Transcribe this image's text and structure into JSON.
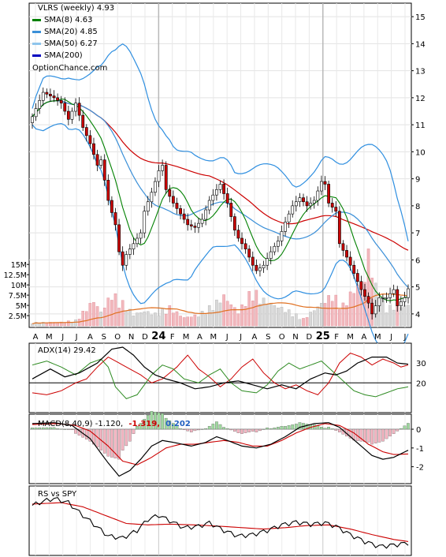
{
  "chart_data": {
    "type": "line",
    "panels": {
      "price": {
        "legend": [
          {
            "label": "VLRS (weekly) 4.93",
            "color": "#000000",
            "marker": "none"
          },
          {
            "label": "SMA(8) 4.63",
            "color": "#008000",
            "marker": "line"
          },
          {
            "label": "SMA(20) 4.85",
            "color": "#3a8fd8",
            "marker": "line"
          },
          {
            "label": "SMA(50) 6.27",
            "color": "#8ec5ec",
            "marker": "line"
          },
          {
            "label": "SMA(200)",
            "color": "#0000c0",
            "marker": "line"
          }
        ],
        "watermark": "OptionChance.com",
        "ylim": [
          3.5,
          15.5
        ],
        "price_ticks": [
          "4",
          "5",
          "6",
          "7",
          "8",
          "9",
          "10",
          "11",
          "12",
          "13",
          "14",
          "15"
        ],
        "price_tick_values": [
          4,
          5,
          6,
          7,
          8,
          9,
          10,
          11,
          12,
          13,
          14,
          15
        ],
        "volume_ticks": [
          "2.5M",
          "5M",
          "7.5M",
          "10M",
          "12.5M",
          "15M"
        ],
        "volume_tick_values": [
          2.5,
          5,
          7.5,
          10,
          12.5,
          15
        ],
        "volume_max": 16
      },
      "adx": {
        "label": "ADX(14) 29.42",
        "ticks": [
          "20",
          "30"
        ],
        "tick_values": [
          20,
          30
        ],
        "ylim": [
          5,
          40
        ]
      },
      "macd": {
        "label": "MACD(8,40,9) -1.120,",
        "signal_text": "-1.319,",
        "hist_text": "0.202",
        "ticks": [
          "0",
          "-1",
          "-2"
        ],
        "tick_values": [
          0,
          -1,
          -2
        ],
        "ylim": [
          -2.9,
          0.8
        ]
      },
      "rs": {
        "label": "RS vs SPY",
        "ylim": [
          0,
          1
        ]
      }
    },
    "x_labels": [
      {
        "text": "A",
        "bold": false
      },
      {
        "text": "M",
        "bold": false
      },
      {
        "text": "J",
        "bold": false
      },
      {
        "text": "J",
        "bold": false
      },
      {
        "text": "A",
        "bold": false
      },
      {
        "text": "S",
        "bold": false
      },
      {
        "text": "O",
        "bold": false
      },
      {
        "text": "N",
        "bold": false
      },
      {
        "text": "D",
        "bold": false
      },
      {
        "text": "24",
        "bold": true
      },
      {
        "text": "F",
        "bold": false
      },
      {
        "text": "M",
        "bold": false
      },
      {
        "text": "A",
        "bold": false
      },
      {
        "text": "M",
        "bold": false
      },
      {
        "text": "J",
        "bold": false
      },
      {
        "text": "J",
        "bold": false
      },
      {
        "text": "A",
        "bold": false
      },
      {
        "text": "S",
        "bold": false
      },
      {
        "text": "O",
        "bold": false
      },
      {
        "text": "N",
        "bold": false
      },
      {
        "text": "D",
        "bold": false
      },
      {
        "text": "25",
        "bold": true
      },
      {
        "text": "F",
        "bold": false
      },
      {
        "text": "M",
        "bold": false
      },
      {
        "text": "A",
        "bold": false
      },
      {
        "text": "M",
        "bold": false
      },
      {
        "text": "J",
        "bold": false
      },
      {
        "text": "J",
        "bold": false
      }
    ],
    "price_anchors": [
      [
        0,
        11.3
      ],
      [
        3,
        12.2
      ],
      [
        6,
        12.0
      ],
      [
        8,
        11.8
      ],
      [
        10,
        11.2
      ],
      [
        12,
        11.8
      ],
      [
        14,
        10.9
      ],
      [
        16,
        10.3
      ],
      [
        18,
        9.5
      ],
      [
        19,
        9.7
      ],
      [
        21,
        8.2
      ],
      [
        23,
        7.3
      ],
      [
        24,
        6.3
      ],
      [
        25,
        5.8
      ],
      [
        26,
        6.2
      ],
      [
        28,
        6.6
      ],
      [
        30,
        7.0
      ],
      [
        31,
        7.8
      ],
      [
        33,
        8.5
      ],
      [
        35,
        9.3
      ],
      [
        36,
        9.5
      ],
      [
        37,
        8.6
      ],
      [
        39,
        8.1
      ],
      [
        41,
        7.7
      ],
      [
        43,
        7.3
      ],
      [
        45,
        7.2
      ],
      [
        47,
        7.5
      ],
      [
        49,
        8.2
      ],
      [
        51,
        8.6
      ],
      [
        52,
        8.8
      ],
      [
        54,
        8.1
      ],
      [
        56,
        7.1
      ],
      [
        57,
        6.8
      ],
      [
        59,
        6.4
      ],
      [
        61,
        5.8
      ],
      [
        62,
        5.6
      ],
      [
        64,
        5.8
      ],
      [
        66,
        6.3
      ],
      [
        68,
        6.7
      ],
      [
        70,
        7.4
      ],
      [
        72,
        8.0
      ],
      [
        74,
        8.3
      ],
      [
        76,
        8.0
      ],
      [
        78,
        8.2
      ],
      [
        80,
        8.9
      ],
      [
        81,
        8.8
      ],
      [
        82,
        8.1
      ],
      [
        84,
        7.8
      ],
      [
        85,
        6.6
      ],
      [
        87,
        6.1
      ],
      [
        89,
        5.5
      ],
      [
        91,
        4.9
      ],
      [
        93,
        4.4
      ],
      [
        94,
        4.0
      ],
      [
        96,
        4.6
      ],
      [
        98,
        4.6
      ],
      [
        100,
        4.9
      ],
      [
        101,
        4.3
      ],
      [
        103,
        4.6
      ],
      [
        104,
        4.93
      ]
    ],
    "volume_anchors": [
      [
        0,
        0.7
      ],
      [
        8,
        0.8
      ],
      [
        12,
        1.2
      ],
      [
        17,
        5.5
      ],
      [
        19,
        3.0
      ],
      [
        22,
        7.0
      ],
      [
        25,
        5.0
      ],
      [
        28,
        2.5
      ],
      [
        31,
        3.2
      ],
      [
        34,
        2.6
      ],
      [
        38,
        4.0
      ],
      [
        42,
        1.8
      ],
      [
        46,
        2.4
      ],
      [
        50,
        4.5
      ],
      [
        53,
        6.5
      ],
      [
        57,
        3.0
      ],
      [
        61,
        8.0
      ],
      [
        63,
        6.0
      ],
      [
        67,
        4.5
      ],
      [
        71,
        3.2
      ],
      [
        75,
        1.5
      ],
      [
        79,
        4.2
      ],
      [
        83,
        6.8
      ],
      [
        86,
        4.5
      ],
      [
        89,
        8.0
      ],
      [
        92,
        10.0
      ],
      [
        93,
        16.0
      ],
      [
        95,
        8.5
      ],
      [
        98,
        4.0
      ],
      [
        104,
        4.5
      ]
    ],
    "adx_anchors": [
      [
        0,
        22
      ],
      [
        5,
        27
      ],
      [
        9,
        23
      ],
      [
        13,
        25
      ],
      [
        18,
        30
      ],
      [
        22,
        37
      ],
      [
        25,
        38
      ],
      [
        28,
        34
      ],
      [
        31,
        28
      ],
      [
        34,
        24
      ],
      [
        37,
        22
      ],
      [
        41,
        20
      ],
      [
        45,
        17
      ],
      [
        49,
        18
      ],
      [
        53,
        20
      ],
      [
        57,
        21
      ],
      [
        61,
        19
      ],
      [
        65,
        17
      ],
      [
        69,
        19
      ],
      [
        73,
        17
      ],
      [
        77,
        22
      ],
      [
        81,
        25
      ],
      [
        84,
        24
      ],
      [
        87,
        26
      ],
      [
        90,
        30
      ],
      [
        94,
        33
      ],
      [
        98,
        33
      ],
      [
        101,
        30
      ],
      [
        104,
        29.42
      ]
    ],
    "plus_di_anchors": [
      [
        0,
        29
      ],
      [
        4,
        31
      ],
      [
        8,
        28
      ],
      [
        12,
        24
      ],
      [
        16,
        30
      ],
      [
        19,
        32
      ],
      [
        21,
        28
      ],
      [
        23,
        18
      ],
      [
        26,
        12
      ],
      [
        29,
        14
      ],
      [
        33,
        24
      ],
      [
        36,
        29
      ],
      [
        39,
        27
      ],
      [
        42,
        22
      ],
      [
        46,
        20
      ],
      [
        49,
        24
      ],
      [
        52,
        27
      ],
      [
        55,
        20
      ],
      [
        58,
        16
      ],
      [
        62,
        15
      ],
      [
        65,
        19
      ],
      [
        68,
        26
      ],
      [
        71,
        30
      ],
      [
        74,
        27
      ],
      [
        77,
        29
      ],
      [
        80,
        31
      ],
      [
        83,
        26
      ],
      [
        86,
        21
      ],
      [
        89,
        16
      ],
      [
        92,
        14
      ],
      [
        95,
        13
      ],
      [
        98,
        15
      ],
      [
        101,
        17
      ],
      [
        104,
        18
      ]
    ],
    "minus_di_anchors": [
      [
        0,
        15
      ],
      [
        4,
        14
      ],
      [
        8,
        16
      ],
      [
        12,
        20
      ],
      [
        15,
        22
      ],
      [
        18,
        28
      ],
      [
        21,
        33
      ],
      [
        24,
        30
      ],
      [
        27,
        27
      ],
      [
        30,
        24
      ],
      [
        33,
        20
      ],
      [
        36,
        22
      ],
      [
        40,
        28
      ],
      [
        43,
        34
      ],
      [
        46,
        27
      ],
      [
        49,
        23
      ],
      [
        52,
        18
      ],
      [
        55,
        22
      ],
      [
        58,
        28
      ],
      [
        61,
        32
      ],
      [
        64,
        25
      ],
      [
        67,
        20
      ],
      [
        70,
        17
      ],
      [
        73,
        19
      ],
      [
        76,
        16
      ],
      [
        79,
        14
      ],
      [
        82,
        20
      ],
      [
        85,
        30
      ],
      [
        88,
        35
      ],
      [
        91,
        33
      ],
      [
        94,
        29
      ],
      [
        97,
        32
      ],
      [
        100,
        30
      ],
      [
        102,
        28
      ],
      [
        104,
        29
      ]
    ],
    "macd_anchors": [
      [
        0,
        0.3
      ],
      [
        6,
        0.35
      ],
      [
        11,
        0.2
      ],
      [
        16,
        -0.5
      ],
      [
        21,
        -1.8
      ],
      [
        24,
        -2.5
      ],
      [
        27,
        -2.2
      ],
      [
        30,
        -1.6
      ],
      [
        33,
        -0.9
      ],
      [
        36,
        -0.6
      ],
      [
        39,
        -0.7
      ],
      [
        44,
        -0.9
      ],
      [
        48,
        -0.7
      ],
      [
        51,
        -0.4
      ],
      [
        54,
        -0.6
      ],
      [
        58,
        -0.9
      ],
      [
        62,
        -1.0
      ],
      [
        66,
        -0.8
      ],
      [
        70,
        -0.4
      ],
      [
        74,
        0.1
      ],
      [
        78,
        0.3
      ],
      [
        82,
        0.35
      ],
      [
        85,
        0.1
      ],
      [
        88,
        -0.4
      ],
      [
        91,
        -0.9
      ],
      [
        94,
        -1.4
      ],
      [
        97,
        -1.6
      ],
      [
        100,
        -1.5
      ],
      [
        104,
        -1.12
      ]
    ],
    "macd_signal_anchors": [
      [
        0,
        0.25
      ],
      [
        7,
        0.3
      ],
      [
        12,
        0.2
      ],
      [
        16,
        -0.1
      ],
      [
        21,
        -0.9
      ],
      [
        25,
        -1.7
      ],
      [
        29,
        -1.9
      ],
      [
        33,
        -1.5
      ],
      [
        37,
        -1.0
      ],
      [
        41,
        -0.8
      ],
      [
        45,
        -0.8
      ],
      [
        49,
        -0.7
      ],
      [
        53,
        -0.6
      ],
      [
        57,
        -0.7
      ],
      [
        61,
        -0.9
      ],
      [
        65,
        -0.9
      ],
      [
        69,
        -0.6
      ],
      [
        73,
        -0.2
      ],
      [
        77,
        0.1
      ],
      [
        81,
        0.3
      ],
      [
        85,
        0.2
      ],
      [
        89,
        -0.2
      ],
      [
        93,
        -0.8
      ],
      [
        97,
        -1.2
      ],
      [
        100,
        -1.35
      ],
      [
        104,
        -1.319
      ]
    ],
    "rs_anchors": [
      [
        0,
        0.72
      ],
      [
        3,
        0.78
      ],
      [
        6,
        0.82
      ],
      [
        10,
        0.76
      ],
      [
        13,
        0.62
      ],
      [
        17,
        0.45
      ],
      [
        21,
        0.28
      ],
      [
        25,
        0.25
      ],
      [
        29,
        0.36
      ],
      [
        32,
        0.52
      ],
      [
        35,
        0.58
      ],
      [
        38,
        0.5
      ],
      [
        42,
        0.4
      ],
      [
        46,
        0.42
      ],
      [
        49,
        0.47
      ],
      [
        53,
        0.36
      ],
      [
        57,
        0.28
      ],
      [
        61,
        0.3
      ],
      [
        65,
        0.36
      ],
      [
        69,
        0.44
      ],
      [
        73,
        0.48
      ],
      [
        77,
        0.45
      ],
      [
        81,
        0.47
      ],
      [
        84,
        0.42
      ],
      [
        88,
        0.3
      ],
      [
        92,
        0.2
      ],
      [
        96,
        0.13
      ],
      [
        100,
        0.15
      ],
      [
        104,
        0.18
      ]
    ],
    "rs_sma_anchors": [
      [
        0,
        0.74
      ],
      [
        8,
        0.76
      ],
      [
        14,
        0.7
      ],
      [
        20,
        0.58
      ],
      [
        26,
        0.46
      ],
      [
        32,
        0.44
      ],
      [
        38,
        0.45
      ],
      [
        45,
        0.44
      ],
      [
        52,
        0.42
      ],
      [
        58,
        0.4
      ],
      [
        64,
        0.38
      ],
      [
        70,
        0.4
      ],
      [
        76,
        0.43
      ],
      [
        82,
        0.44
      ],
      [
        88,
        0.38
      ],
      [
        94,
        0.3
      ],
      [
        100,
        0.23
      ],
      [
        104,
        0.2
      ]
    ],
    "colors": {
      "up": "#ffffff",
      "down": "#cc0000",
      "wick": "#000000",
      "sma8": "#008000",
      "sma20": "#3a8fd8",
      "sma50": "#8ec5ec",
      "sma200": "#0000c0",
      "trend": "#cc0000",
      "bands": "#2f8fe0",
      "volume_up": "#d8d8d8",
      "volume_down": "#f2b8bd",
      "volume_avg": "#e07020",
      "adx": "#000000",
      "plus_di": "#2e8b22",
      "minus_di": "#cc0000",
      "macd": "#000000",
      "signal": "#cc0000",
      "hist_up": "#9fd89f",
      "hist_down": "#f4b6c2",
      "rs": "#000000",
      "rs_sma": "#cc0000"
    }
  }
}
